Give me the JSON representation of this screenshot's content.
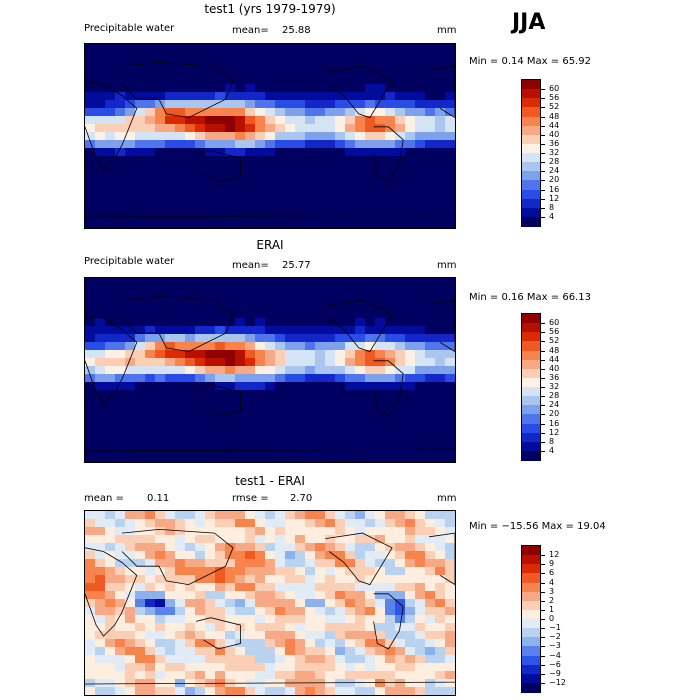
{
  "season": "JJA",
  "panels": [
    {
      "id": "model",
      "title": "test1 (yrs 1979-1979)",
      "left_label": "Precipitable water",
      "stat_label": "mean=",
      "stat_value": "25.88",
      "units": "mm",
      "minmax_text": "Min =    0.14 Max =   65.92",
      "levels": [
        "60",
        "56",
        "52",
        "48",
        "44",
        "40",
        "36",
        "32",
        "28",
        "24",
        "20",
        "16",
        "12",
        "8",
        "4"
      ],
      "colors": [
        "#8e0000",
        "#b81000",
        "#dc2a05",
        "#ee5a22",
        "#f6844c",
        "#f7a986",
        "#fbcfb6",
        "#fdf1e6",
        "#d4e4f5",
        "#aac6ee",
        "#7ea1ec",
        "#4f74ec",
        "#2a4ce6",
        "#1326c8",
        "#020c9c",
        "#000060"
      ],
      "style": "clim"
    },
    {
      "id": "obs",
      "title": "ERAI",
      "left_label": "Precipitable water",
      "stat_label": "mean=",
      "stat_value": "25.77",
      "units": "mm",
      "minmax_text": "Min =    0.16 Max =   66.13",
      "levels": [
        "60",
        "56",
        "52",
        "48",
        "44",
        "40",
        "36",
        "32",
        "28",
        "24",
        "20",
        "16",
        "12",
        "8",
        "4"
      ],
      "colors": [
        "#8e0000",
        "#b81000",
        "#dc2a05",
        "#ee5a22",
        "#f6844c",
        "#f7a986",
        "#fbcfb6",
        "#fdf1e6",
        "#d4e4f5",
        "#aac6ee",
        "#7ea1ec",
        "#4f74ec",
        "#2a4ce6",
        "#1326c8",
        "#020c9c",
        "#000060"
      ],
      "style": "clim"
    },
    {
      "id": "diff",
      "title": "test1 - ERAI",
      "left_label": "mean =",
      "left_value": "0.11",
      "stat_label": "rmse =",
      "stat_value": "2.70",
      "units": "mm",
      "minmax_text": "Min = −15.56 Max =   19.04",
      "levels": [
        "12",
        "9",
        "6",
        "4",
        "3",
        "2",
        "1",
        "0",
        "−1",
        "−2",
        "−3",
        "−4",
        "−6",
        "−9",
        "−12"
      ],
      "colors": [
        "#8e0000",
        "#b81000",
        "#dc2a05",
        "#ee5a22",
        "#f6844c",
        "#f7a986",
        "#fbcfb6",
        "#fdeee0",
        "#e0ebf6",
        "#b9d2f0",
        "#8db0ee",
        "#5a82ec",
        "#2e55e6",
        "#1326c8",
        "#020c9c",
        "#000060"
      ],
      "style": "diff"
    }
  ]
}
